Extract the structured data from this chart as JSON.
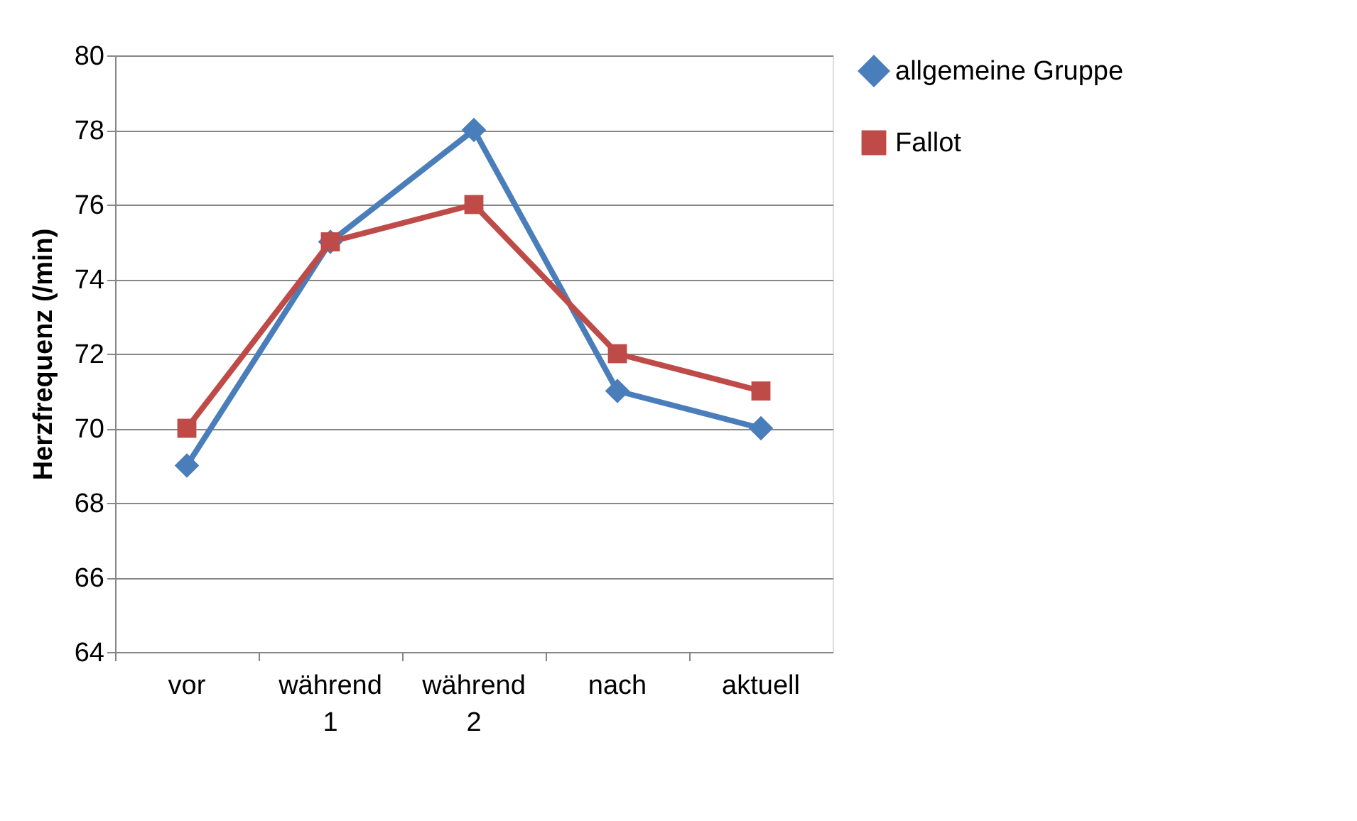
{
  "chart_data": {
    "type": "line",
    "ylabel": "Herzfrequenz (/min)",
    "categories": [
      "vor",
      "während 1",
      "während 2",
      "nach",
      "aktuell"
    ],
    "series": [
      {
        "name": "allgemeine Gruppe",
        "color": "#4a7ebb",
        "values": [
          69,
          75,
          78,
          71,
          70
        ],
        "marker": "diamond"
      },
      {
        "name": "Fallot",
        "color": "#be4b48",
        "values": [
          70,
          75,
          76,
          72,
          71
        ],
        "marker": "square"
      }
    ],
    "ylim": [
      64,
      80
    ],
    "yticks": [
      64,
      66,
      68,
      70,
      72,
      74,
      76,
      78,
      80
    ],
    "grid": "y",
    "legend": "right",
    "line_style": "solid"
  }
}
